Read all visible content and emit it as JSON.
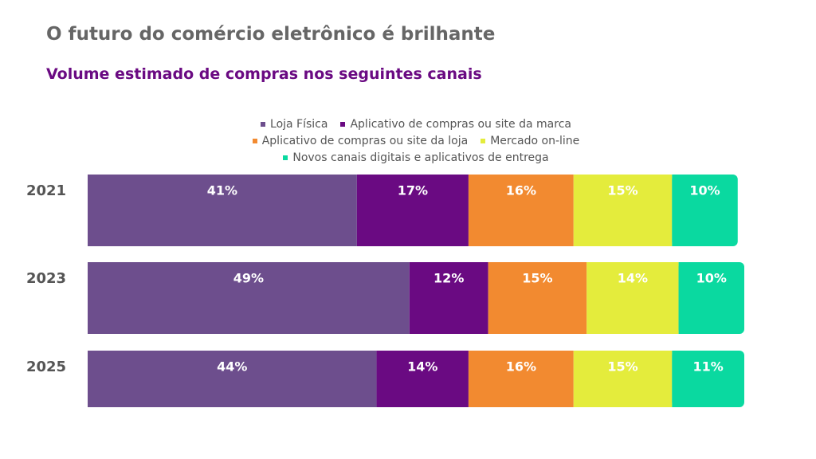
{
  "chart_data": {
    "type": "stacked-bar",
    "orientation": "horizontal",
    "title": "O futuro do comércio eletrônico é brilhante",
    "subtitle": "Volume estimado de compras nos seguintes canais",
    "categories": [
      "2021",
      "2023",
      "2025"
    ],
    "series": [
      {
        "name": "Loja Física",
        "color": "#6d4e8d",
        "values": [
          41,
          49,
          44
        ],
        "value_labels": [
          "41%",
          "49%",
          "44%"
        ]
      },
      {
        "name": "Aplicativo de compras ou site da marca",
        "color": "#6a0a82",
        "values": [
          17,
          12,
          14
        ],
        "value_labels": [
          "17%",
          "12%",
          "14%"
        ]
      },
      {
        "name": "Aplicativo de compras ou site da loja",
        "color": "#f28a30",
        "values": [
          16,
          15,
          16
        ],
        "value_labels": [
          "16%",
          "15%",
          "16%"
        ]
      },
      {
        "name": "Mercado on-line",
        "color": "#e4ec3c",
        "values": [
          15,
          14,
          15
        ],
        "value_labels": [
          "15%",
          "14%",
          "15%"
        ]
      },
      {
        "name": "Novos canais digitais e aplicativos de entrega",
        "color": "#0ad9a0",
        "values": [
          10,
          10,
          11
        ],
        "value_labels": [
          "10%",
          "10%",
          "11%"
        ]
      }
    ]
  }
}
